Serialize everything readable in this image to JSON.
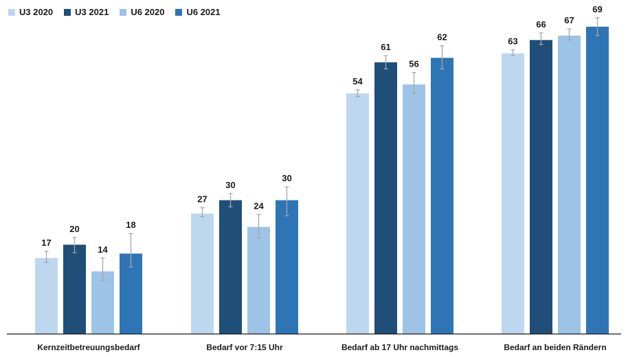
{
  "chart_data": {
    "type": "bar",
    "categories": [
      "Kernzeitbetreuungsbedarf",
      "Bedarf vor 7:15 Uhr",
      "Bedarf ab 17 Uhr nachmittags",
      "Bedarf an beiden Rändern"
    ],
    "series": [
      {
        "name": "U3 2020",
        "color": "#bdd7ee",
        "values": [
          17,
          27,
          54,
          63
        ],
        "error": [
          [
            16,
            18.5
          ],
          [
            26.3,
            28.3
          ],
          [
            53.3,
            54.8
          ],
          [
            62.5,
            63.8
          ]
        ]
      },
      {
        "name": "U3 2021",
        "color": "#1f4e79",
        "values": [
          20,
          30,
          61,
          66
        ],
        "error": [
          [
            18.2,
            21.6
          ],
          [
            28.5,
            31.5
          ],
          [
            59.5,
            62.5
          ],
          [
            65,
            67.6
          ]
        ]
      },
      {
        "name": "U6 2020",
        "color": "#9dc3e6",
        "values": [
          14,
          24,
          56,
          67
        ],
        "error": [
          [
            12,
            17
          ],
          [
            21.5,
            26.8
          ],
          [
            54,
            58.7
          ],
          [
            66,
            68.5
          ]
        ]
      },
      {
        "name": "U6 2021",
        "color": "#2e75b6",
        "values": [
          18,
          30,
          62,
          69
        ],
        "error": [
          [
            15,
            22.5
          ],
          [
            26.5,
            33
          ],
          [
            59.5,
            64.7
          ],
          [
            67,
            71
          ]
        ]
      }
    ],
    "ylim": [
      0,
      75
    ],
    "legend_position": "top-left",
    "grid": false,
    "errorbar_color": "#a6a6a6"
  }
}
